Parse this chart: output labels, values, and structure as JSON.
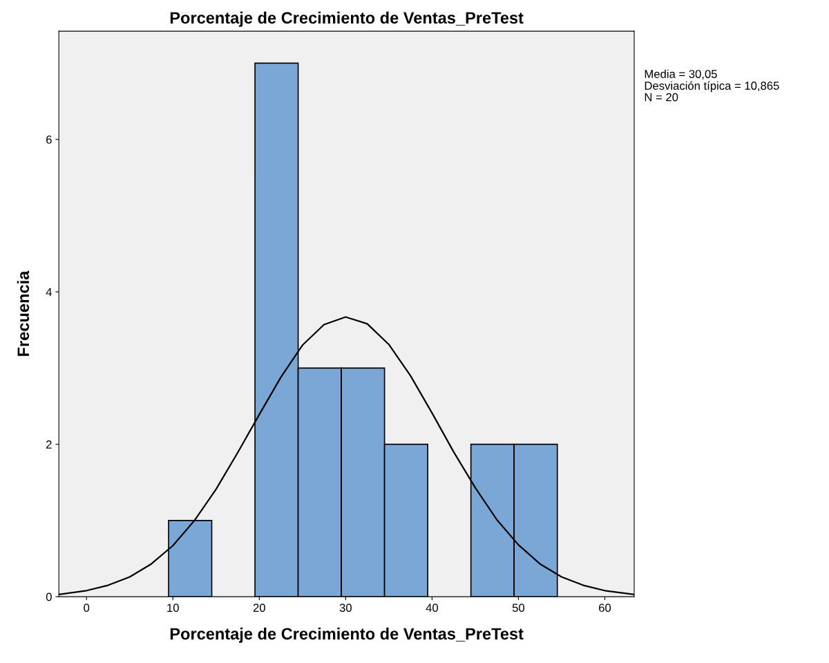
{
  "chart_data": {
    "type": "histogram",
    "title": "Porcentaje de Crecimiento de Ventas_PreTest",
    "xlabel": "Porcentaje de Crecimiento de Ventas_PreTest",
    "ylabel": "Frecuencia",
    "bins": [
      9.5,
      14.5,
      19.5,
      24.5,
      29.5,
      34.5,
      39.5,
      44.5,
      49.5,
      54.5
    ],
    "values": [
      1,
      0,
      7,
      3,
      3,
      2,
      0,
      2,
      2
    ],
    "color": "#7ba7d6",
    "series": [
      {
        "type": "line",
        "color": "#000000",
        "x": [
          -3.2,
          0,
          2.5,
          5,
          7.5,
          10,
          12.5,
          15,
          17.5,
          20,
          22.5,
          25,
          27.5,
          30,
          32.5,
          35,
          37.5,
          40,
          42.5,
          45,
          47.5,
          50,
          52.5,
          55,
          57.5,
          60,
          63.4
        ],
        "values": [
          0.03,
          0.08,
          0.15,
          0.26,
          0.43,
          0.67,
          1.0,
          1.41,
          1.89,
          2.39,
          2.88,
          3.3,
          3.57,
          3.67,
          3.58,
          3.31,
          2.9,
          2.41,
          1.9,
          1.43,
          1.01,
          0.68,
          0.43,
          0.26,
          0.15,
          0.08,
          0.03
        ]
      }
    ],
    "xlim": [
      -3.2,
      63.4
    ],
    "ylim": [
      0,
      7.42
    ],
    "xticks": [
      0,
      10,
      20,
      30,
      40,
      50,
      60
    ],
    "yticks": [
      0,
      2,
      4,
      6
    ],
    "grid": false,
    "annotations": [
      "Media = 30,05",
      "Desviación típica = 10,865",
      "N = 20"
    ]
  }
}
